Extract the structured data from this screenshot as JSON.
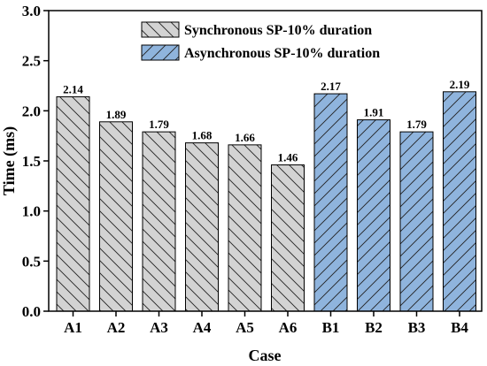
{
  "chart_data": {
    "type": "bar",
    "xlabel": "Case",
    "ylabel": "Time (ms)",
    "ylim": [
      0,
      3.0
    ],
    "yticks": [
      "0.0",
      "0.5",
      "1.0",
      "1.5",
      "2.0",
      "2.5",
      "3.0"
    ],
    "grid": false,
    "legend_position": "top-center",
    "series": [
      {
        "name": "Synchronous SP-10% duration",
        "color": "#d3d3d3",
        "categories": [
          "A1",
          "A2",
          "A3",
          "A4",
          "A5",
          "A6"
        ],
        "values": [
          2.14,
          1.89,
          1.79,
          1.68,
          1.66,
          1.46
        ],
        "labels": [
          "2.14",
          "1.89",
          "1.79",
          "1.68",
          "1.66",
          "1.46"
        ]
      },
      {
        "name": "Asynchronous SP-10% duration",
        "color": "#8fb4dd",
        "categories": [
          "B1",
          "B2",
          "B3",
          "B4"
        ],
        "values": [
          2.17,
          1.91,
          1.79,
          2.19
        ],
        "labels": [
          "2.17",
          "1.91",
          "1.79",
          "2.19"
        ]
      }
    ]
  }
}
